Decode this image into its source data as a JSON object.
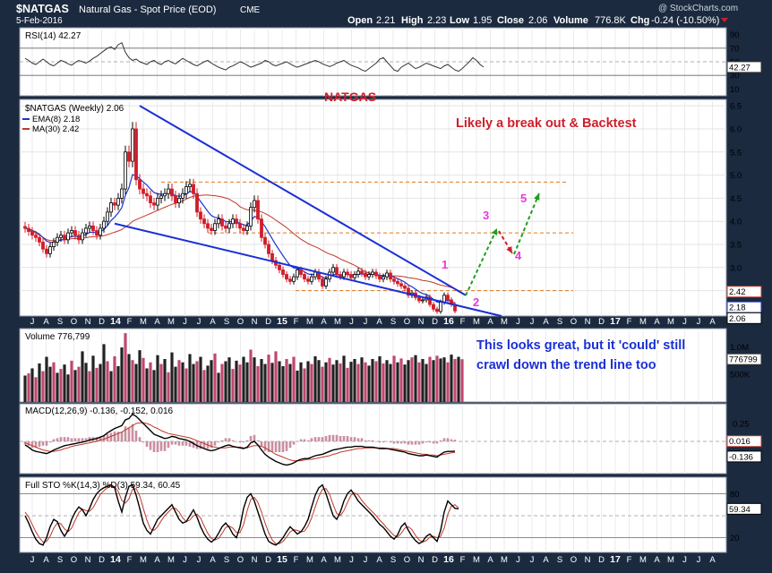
{
  "header": {
    "symbol": "$NATGAS",
    "name": "Natural Gas - Spot Price (EOD)",
    "exchange": "CME",
    "date": "5-Feb-2016",
    "watermark": "@ StockCharts.com",
    "ohlc": {
      "open_label": "Open",
      "open": "2.21",
      "high_label": "High",
      "high": "2.23",
      "low_label": "Low",
      "low": "1.95",
      "close_label": "Close",
      "close": "2.06",
      "volume_label": "Volume",
      "volume": "776.8K",
      "chg_label": "Chg",
      "chg": "-0.24 (-10.50%)"
    }
  },
  "colors": {
    "background": "#1b2a3f",
    "panel": "#ffffff",
    "up": "#000000",
    "down": "#d01d2a",
    "volume_down": "#c0476e",
    "ema": "#1a33cc",
    "ma": "#c0392b",
    "trendline": "#1a2fd6",
    "support": "#e0781e",
    "arrow": "#1ea01e",
    "wave_label": "#e83ad8",
    "annotation_red": "#d01d2a",
    "annotation_blue": "#1a2fd6"
  },
  "annotations": {
    "title": "NATGAS",
    "breakout": "Likely a break out & Backtest",
    "note_line1": "This looks great, but it 'could' still",
    "note_line2": "crawl down the trend line too",
    "waves": [
      "1",
      "2",
      "3",
      "4",
      "5"
    ]
  },
  "chart_data": [
    {
      "type": "line",
      "panel": "RSI",
      "label": "RSI(14) 42.27",
      "last_value": "42.27",
      "y_ticks": [
        "90",
        "70",
        "50",
        "30",
        "10"
      ],
      "ylim": [
        0,
        100
      ],
      "levels": [
        70,
        30
      ],
      "values": [
        55,
        52,
        48,
        46,
        50,
        54,
        50,
        46,
        44,
        48,
        52,
        50,
        47,
        45,
        49,
        52,
        50,
        48,
        51,
        55,
        58,
        62,
        66,
        70,
        72,
        68,
        75,
        78,
        64,
        56,
        52,
        54,
        50,
        48,
        46,
        50,
        52,
        48,
        46,
        50,
        52,
        49,
        47,
        51,
        55,
        52,
        49,
        46,
        44,
        47,
        50,
        52,
        48,
        45,
        42,
        40,
        38,
        42,
        44,
        47,
        50,
        48,
        45,
        42,
        44,
        46,
        48,
        52,
        50,
        46,
        44,
        46,
        48,
        50,
        47,
        44,
        42,
        44,
        46,
        48,
        50,
        52,
        50,
        47,
        45,
        43,
        45,
        48,
        50,
        52,
        48,
        45,
        43,
        41,
        38,
        36,
        40,
        44,
        48,
        54,
        56,
        50,
        44,
        38,
        36,
        42,
        45,
        48,
        44,
        40,
        42,
        45,
        48,
        46,
        44,
        42,
        40,
        44,
        46,
        42,
        38,
        36,
        40,
        45,
        50,
        56,
        52,
        46,
        42.27
      ]
    },
    {
      "type": "candlestick",
      "panel": "Price",
      "label": "$NATGAS (Weekly) 2.06",
      "legend": [
        {
          "name": "EMA(8) 2.18",
          "color": "#1a33cc"
        },
        {
          "name": "MA(30) 2.42",
          "color": "#c0392b"
        }
      ],
      "y_ticks": [
        "6.5",
        "6.0",
        "5.5",
        "5.0",
        "4.5",
        "4.0",
        "3.5",
        "3.0",
        "2.5"
      ],
      "right_labels": [
        "2.42",
        "2.18",
        "2.06"
      ],
      "ylim": [
        1.95,
        6.6
      ],
      "support_levels": [
        4.85,
        3.75,
        2.5
      ],
      "closes": [
        3.85,
        3.78,
        3.7,
        3.65,
        3.55,
        3.4,
        3.3,
        3.45,
        3.55,
        3.65,
        3.7,
        3.6,
        3.75,
        3.8,
        3.7,
        3.6,
        3.75,
        3.85,
        3.9,
        3.8,
        3.7,
        3.85,
        4.0,
        4.2,
        4.4,
        4.35,
        4.5,
        4.7,
        5.5,
        5.3,
        6.0,
        4.9,
        4.7,
        4.6,
        4.55,
        4.4,
        4.35,
        4.5,
        4.55,
        4.6,
        4.7,
        4.55,
        4.4,
        4.5,
        4.6,
        4.75,
        4.8,
        4.6,
        4.2,
        4.05,
        3.95,
        3.85,
        3.8,
        3.95,
        4.05,
        3.9,
        3.85,
        3.95,
        4.05,
        3.95,
        3.85,
        3.8,
        3.9,
        4.3,
        4.45,
        4.05,
        3.65,
        3.5,
        3.3,
        3.15,
        3.05,
        2.95,
        2.85,
        2.75,
        2.7,
        2.8,
        2.95,
        2.85,
        2.75,
        2.7,
        2.8,
        2.9,
        2.75,
        2.6,
        2.75,
        2.9,
        3.0,
        2.85,
        2.8,
        2.9,
        2.85,
        2.78,
        2.85,
        2.92,
        2.88,
        2.8,
        2.85,
        2.9,
        2.82,
        2.75,
        2.8,
        2.88,
        2.75,
        2.7,
        2.65,
        2.6,
        2.55,
        2.4,
        2.45,
        2.35,
        2.28,
        2.3,
        2.36,
        2.2,
        2.1,
        2.05,
        2.25,
        2.4,
        2.3,
        2.2,
        2.06
      ],
      "x_ticks": [
        "J",
        "A",
        "S",
        "O",
        "N",
        "D",
        "14",
        "F",
        "M",
        "A",
        "M",
        "J",
        "J",
        "A",
        "S",
        "O",
        "N",
        "D",
        "15",
        "F",
        "M",
        "A",
        "M",
        "J",
        "J",
        "A",
        "S",
        "O",
        "N",
        "D",
        "16",
        "F",
        "M",
        "A",
        "M",
        "J",
        "J",
        "A",
        "S",
        "O",
        "N",
        "D",
        "17",
        "F",
        "M",
        "A",
        "M",
        "J",
        "J",
        "A"
      ]
    },
    {
      "type": "bar",
      "panel": "Volume",
      "label": "Volume 776,799",
      "last_value": "776799",
      "y_ticks": [
        "1.0M",
        "500K"
      ],
      "ylim": [
        0,
        1300000
      ],
      "values": [
        480000,
        520000,
        610000,
        450000,
        700000,
        560000,
        820000,
        640000,
        720000,
        530000,
        600000,
        680000,
        500000,
        750000,
        580000,
        640000,
        920000,
        710000,
        560000,
        840000,
        620000,
        690000,
        1050000,
        740000,
        560000,
        830000,
        650000,
        990000,
        1250000,
        870000,
        760000,
        690000,
        940000,
        800000,
        610000,
        720000,
        580000,
        850000,
        690000,
        780000,
        540000,
        900000,
        640000,
        760000,
        720000,
        610000,
        870000,
        690000,
        740000,
        820000,
        580000,
        660000,
        760000,
        880000,
        530000,
        690000,
        740000,
        810000,
        600000,
        750000,
        680000,
        820000,
        720000,
        950000,
        810000,
        650000,
        780000,
        690000,
        860000,
        710000,
        920000,
        740000,
        650000,
        780000,
        690000,
        820000,
        570000,
        720000,
        610000,
        740000,
        690000,
        830000,
        760000,
        640000,
        720000,
        800000,
        680000,
        760000,
        700000,
        840000,
        620000,
        730000,
        780000,
        690000,
        810000,
        720000,
        660000,
        780000,
        740000,
        830000,
        700000,
        760000,
        690000,
        840000,
        720000,
        790000,
        680000,
        760000,
        810000,
        850000,
        720000,
        780000,
        690000,
        820000,
        760000,
        840000,
        790000,
        810000,
        720000,
        860000,
        780000,
        820000,
        776799
      ],
      "down_weeks": [
        1,
        3,
        5,
        8,
        10,
        13,
        15,
        18,
        20,
        23,
        25,
        28,
        30,
        33,
        35,
        38,
        40,
        43,
        45,
        48,
        50,
        53,
        55,
        58,
        60,
        63,
        65,
        68,
        70,
        73,
        75,
        78,
        80,
        83,
        85,
        88,
        90,
        93,
        95,
        98,
        100,
        103,
        105,
        108,
        110,
        113,
        115,
        118,
        120,
        122
      ]
    },
    {
      "type": "line",
      "panel": "MACD",
      "label": "MACD(12,26,9) -0.136, -0.152, 0.016",
      "right_labels": [
        "0.016",
        "-0.136"
      ],
      "y_ticks": [
        "0.25",
        "-0.25"
      ],
      "ylim": [
        -0.45,
        0.5
      ],
      "series": [
        {
          "name": "MACD",
          "values": [
            -0.05,
            -0.08,
            -0.12,
            -0.14,
            -0.15,
            -0.16,
            -0.17,
            -0.15,
            -0.12,
            -0.1,
            -0.08,
            -0.06,
            -0.05,
            -0.04,
            -0.03,
            -0.02,
            -0.01,
            0.0,
            0.02,
            0.03,
            0.04,
            0.06,
            0.08,
            0.12,
            0.15,
            0.18,
            0.2,
            0.22,
            0.3,
            0.32,
            0.38,
            0.35,
            0.3,
            0.25,
            0.2,
            0.15,
            0.1,
            0.08,
            0.06,
            0.04,
            0.05,
            0.07,
            0.06,
            0.04,
            0.03,
            0.02,
            0.0,
            -0.03,
            -0.06,
            -0.08,
            -0.1,
            -0.12,
            -0.13,
            -0.12,
            -0.1,
            -0.08,
            -0.06,
            -0.05,
            -0.07,
            -0.08,
            -0.09,
            -0.1,
            -0.08,
            -0.02,
            0.0,
            -0.05,
            -0.12,
            -0.18,
            -0.22,
            -0.25,
            -0.28,
            -0.3,
            -0.32,
            -0.33,
            -0.32,
            -0.3,
            -0.27,
            -0.25,
            -0.24,
            -0.24,
            -0.22,
            -0.2,
            -0.19,
            -0.18,
            -0.16,
            -0.14,
            -0.12,
            -0.11,
            -0.1,
            -0.09,
            -0.08,
            -0.08,
            -0.07,
            -0.07,
            -0.07,
            -0.08,
            -0.08,
            -0.08,
            -0.09,
            -0.1,
            -0.1,
            -0.1,
            -0.11,
            -0.12,
            -0.13,
            -0.14,
            -0.15,
            -0.17,
            -0.18,
            -0.19,
            -0.2,
            -0.2,
            -0.19,
            -0.2,
            -0.21,
            -0.22,
            -0.18,
            -0.15,
            -0.14,
            -0.14,
            -0.136
          ]
        },
        {
          "name": "Signal",
          "values": [
            -0.02,
            -0.04,
            -0.06,
            -0.08,
            -0.1,
            -0.12,
            -0.13,
            -0.14,
            -0.14,
            -0.13,
            -0.12,
            -0.1,
            -0.09,
            -0.07,
            -0.06,
            -0.05,
            -0.04,
            -0.03,
            -0.02,
            -0.01,
            0.0,
            0.02,
            0.03,
            0.05,
            0.07,
            0.09,
            0.11,
            0.13,
            0.16,
            0.19,
            0.22,
            0.25,
            0.26,
            0.26,
            0.25,
            0.23,
            0.2,
            0.18,
            0.15,
            0.13,
            0.11,
            0.1,
            0.09,
            0.08,
            0.07,
            0.06,
            0.05,
            0.03,
            0.01,
            -0.01,
            -0.03,
            -0.05,
            -0.07,
            -0.08,
            -0.09,
            -0.09,
            -0.09,
            -0.08,
            -0.08,
            -0.08,
            -0.08,
            -0.09,
            -0.09,
            -0.07,
            -0.06,
            -0.06,
            -0.07,
            -0.09,
            -0.12,
            -0.15,
            -0.18,
            -0.2,
            -0.22,
            -0.24,
            -0.26,
            -0.27,
            -0.27,
            -0.27,
            -0.26,
            -0.25,
            -0.25,
            -0.24,
            -0.23,
            -0.22,
            -0.21,
            -0.2,
            -0.18,
            -0.17,
            -0.15,
            -0.14,
            -0.13,
            -0.12,
            -0.11,
            -0.1,
            -0.1,
            -0.09,
            -0.09,
            -0.09,
            -0.09,
            -0.09,
            -0.09,
            -0.1,
            -0.1,
            -0.1,
            -0.11,
            -0.12,
            -0.13,
            -0.14,
            -0.15,
            -0.16,
            -0.17,
            -0.18,
            -0.18,
            -0.19,
            -0.19,
            -0.2,
            -0.19,
            -0.18,
            -0.17,
            -0.16,
            -0.152
          ]
        }
      ]
    },
    {
      "type": "line",
      "panel": "STO",
      "label": "Full STO %K(14,3) %D(3) 59.34, 60.45",
      "last_value": "59.34",
      "y_ticks": [
        "80",
        "20"
      ],
      "ylim": [
        0,
        100
      ],
      "levels": [
        80,
        50,
        20
      ],
      "series": [
        {
          "name": "%K",
          "values": [
            50,
            40,
            28,
            18,
            12,
            10,
            20,
            35,
            45,
            42,
            30,
            22,
            30,
            45,
            55,
            62,
            58,
            50,
            60,
            72,
            80,
            85,
            88,
            90,
            92,
            88,
            70,
            55,
            75,
            90,
            92,
            78,
            60,
            40,
            30,
            25,
            35,
            45,
            50,
            55,
            60,
            65,
            55,
            45,
            40,
            42,
            50,
            58,
            48,
            35,
            25,
            18,
            14,
            18,
            26,
            35,
            40,
            34,
            25,
            20,
            35,
            60,
            75,
            80,
            70,
            55,
            40,
            25,
            15,
            12,
            10,
            14,
            20,
            28,
            35,
            30,
            25,
            28,
            35,
            45,
            62,
            78,
            88,
            92,
            80,
            65,
            50,
            45,
            55,
            70,
            80,
            85,
            78,
            70,
            65,
            60,
            55,
            50,
            44,
            38,
            34,
            28,
            22,
            18,
            24,
            35,
            40,
            30,
            22,
            16,
            12,
            15,
            22,
            25,
            20,
            15,
            30,
            55,
            70,
            65,
            60,
            59.34
          ]
        },
        {
          "name": "%D",
          "values": [
            55,
            48,
            38,
            28,
            20,
            14,
            15,
            22,
            33,
            40,
            39,
            32,
            28,
            33,
            44,
            54,
            59,
            57,
            56,
            61,
            70,
            79,
            84,
            88,
            90,
            90,
            83,
            71,
            67,
            73,
            86,
            87,
            77,
            60,
            44,
            32,
            30,
            35,
            43,
            50,
            55,
            60,
            60,
            55,
            47,
            42,
            44,
            50,
            52,
            47,
            36,
            26,
            19,
            17,
            19,
            26,
            34,
            36,
            33,
            27,
            27,
            38,
            57,
            72,
            75,
            68,
            55,
            40,
            27,
            17,
            12,
            12,
            15,
            21,
            28,
            31,
            30,
            28,
            29,
            36,
            47,
            62,
            76,
            86,
            87,
            79,
            65,
            53,
            50,
            57,
            68,
            78,
            81,
            78,
            71,
            65,
            60,
            55,
            50,
            44,
            39,
            33,
            28,
            23,
            21,
            26,
            33,
            35,
            31,
            23,
            17,
            14,
            16,
            21,
            22,
            20,
            22,
            33,
            52,
            63,
            65,
            60.45
          ]
        }
      ]
    }
  ]
}
